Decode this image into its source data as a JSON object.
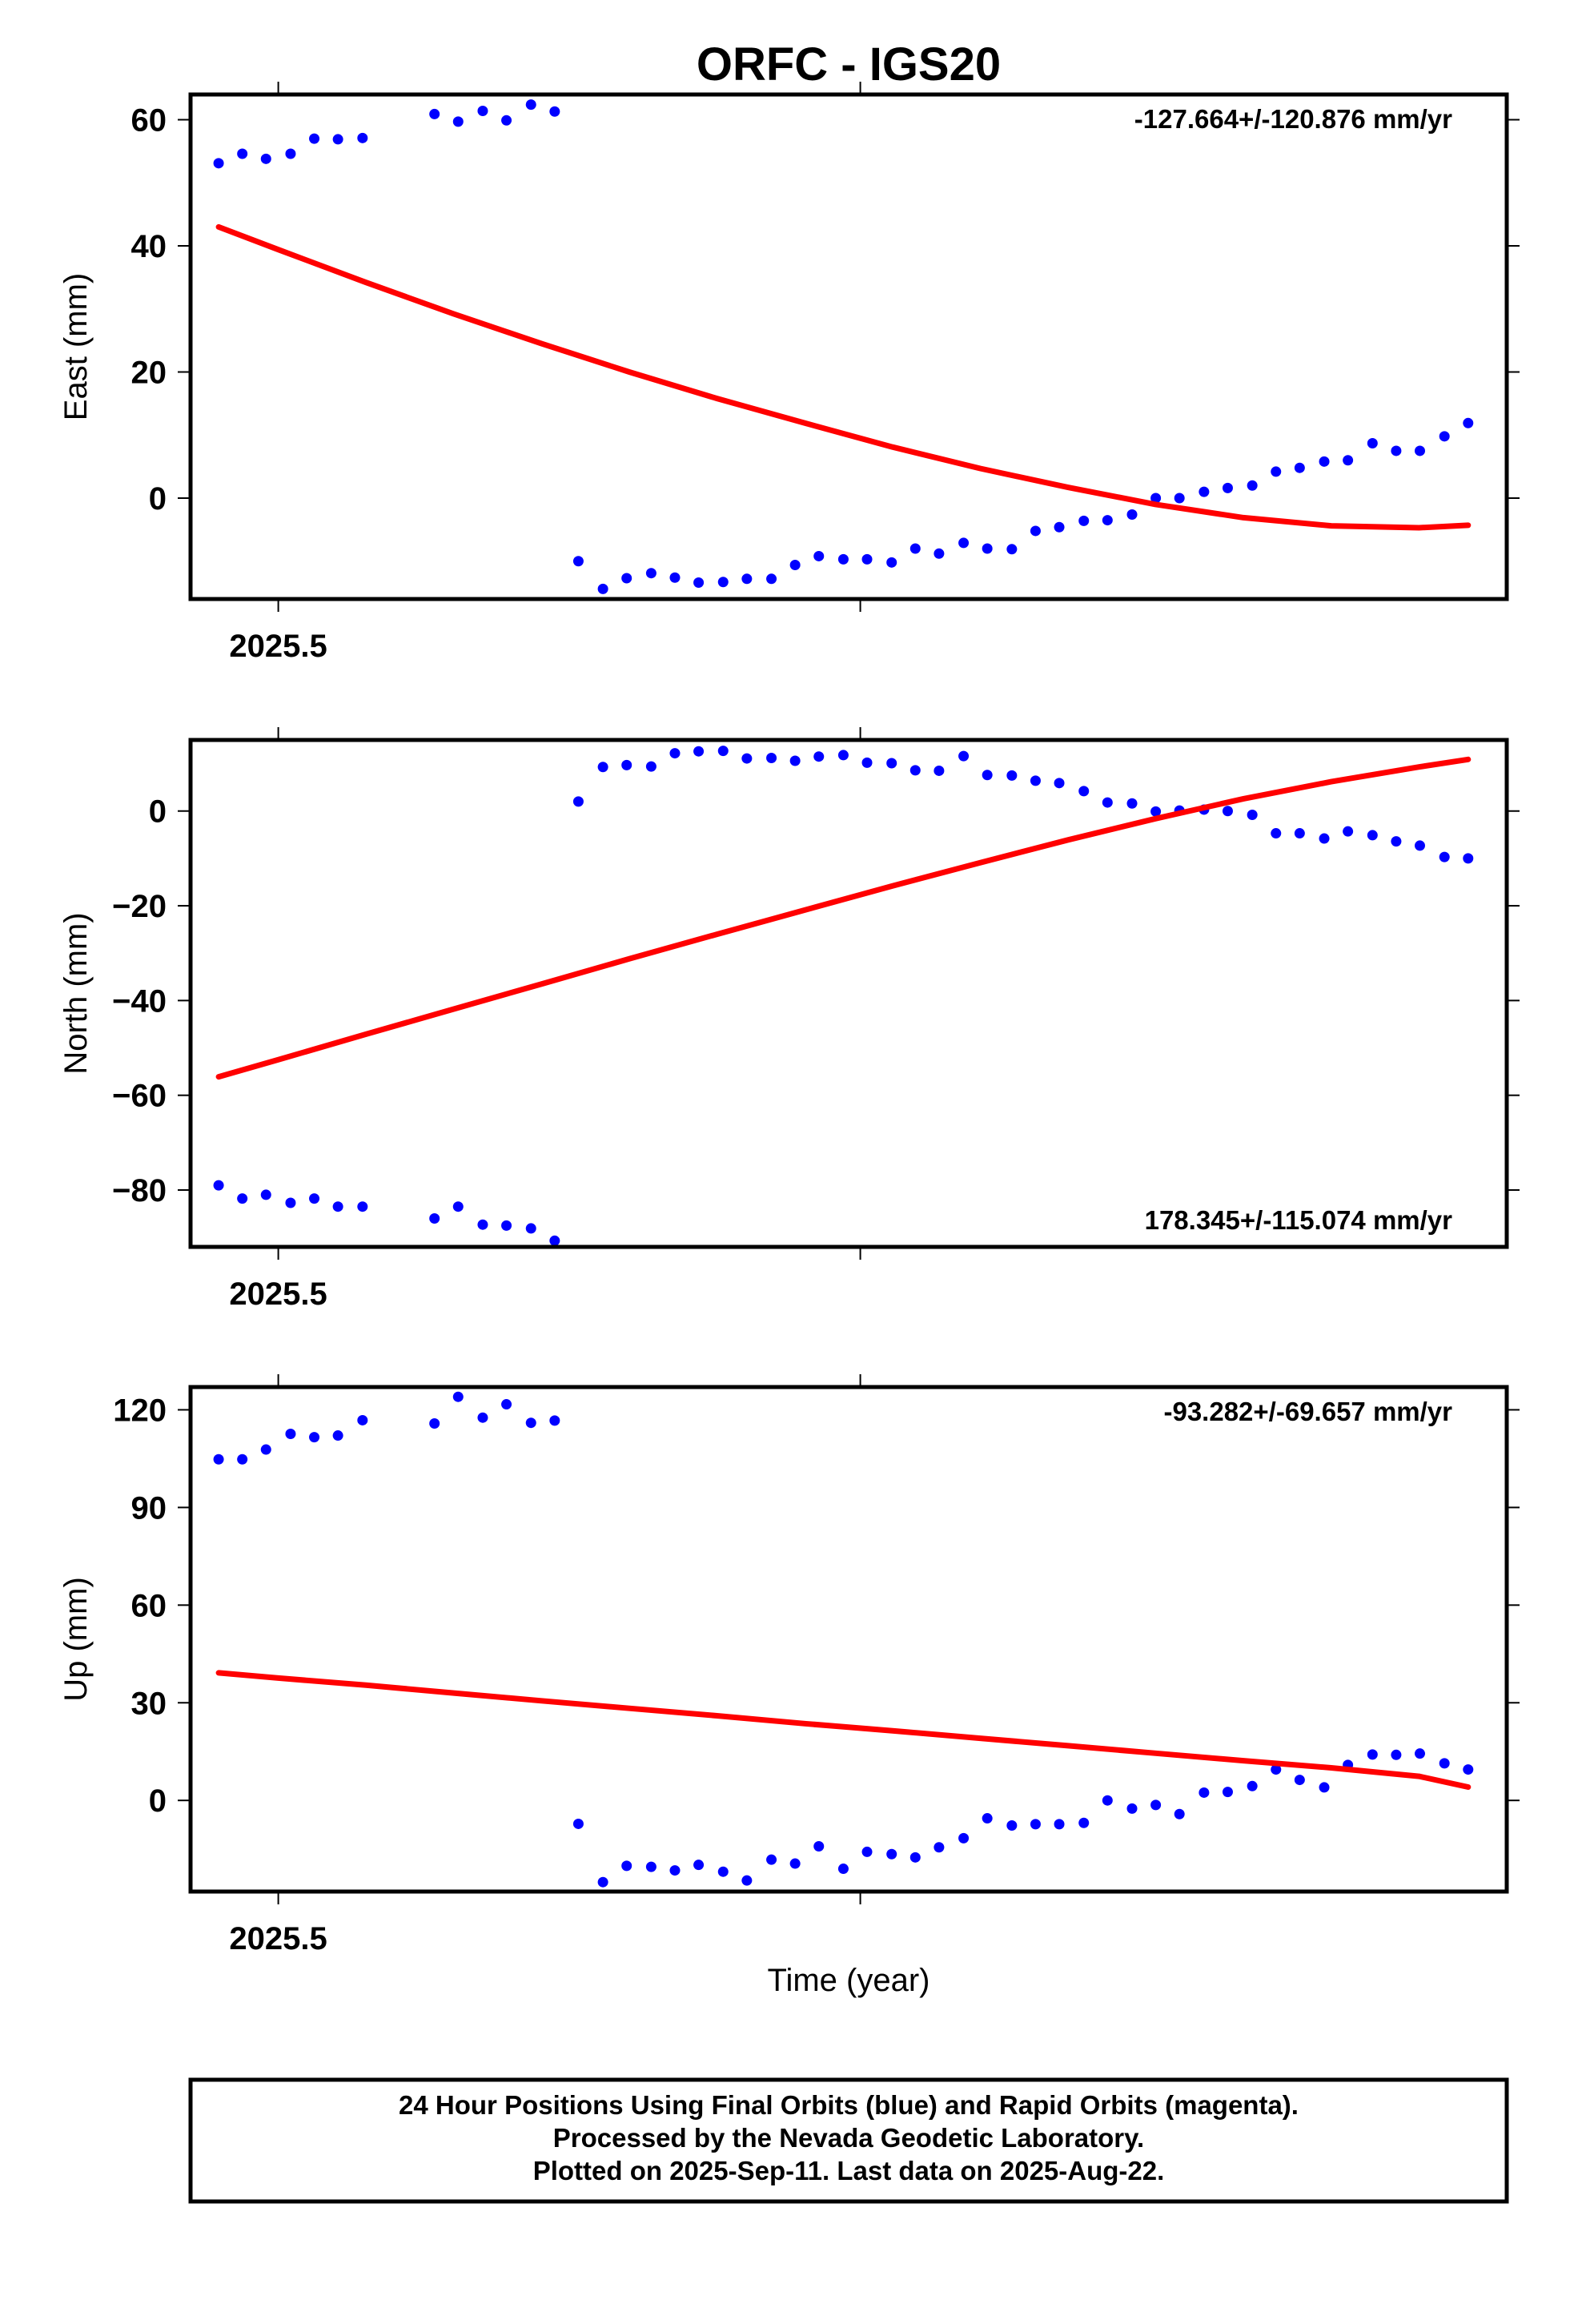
{
  "title": "ORFC - IGS20",
  "xlabel": "Time (year)",
  "x_tick_label": "2025.5",
  "footer": {
    "line1": "24 Hour Positions Using Final Orbits (blue) and Rapid Orbits (magenta).",
    "line2": "Processed by the Nevada Geodetic Laboratory.",
    "line3": "Plotted on 2025-Sep-11. Last data on 2025-Aug-22."
  },
  "colors": {
    "data": "#0000ff",
    "fit": "#ff0000",
    "frame": "#000000"
  },
  "chart_data": [
    {
      "type": "scatter",
      "name": "east",
      "title": "ORFC - IGS20",
      "ylabel": "East (mm)",
      "rate": "-127.664+/-120.876 mm/yr",
      "rate_position": "top-right",
      "xlim": [
        2025.49,
        2025.64
      ],
      "ylim": [
        -16,
        64
      ],
      "yticks": [
        0,
        20,
        40,
        60
      ],
      "ytick_labels": [
        "0",
        "20",
        "40",
        "60"
      ],
      "x": [
        2025.4932,
        2025.4959,
        2025.4986,
        2025.5014,
        2025.5041,
        2025.5068,
        2025.5096,
        2025.5178,
        2025.5205,
        2025.5233,
        2025.526,
        2025.5288,
        2025.5315,
        2025.5342,
        2025.537,
        2025.5397,
        2025.5425,
        2025.5452,
        2025.5479,
        2025.5507,
        2025.5534,
        2025.5562,
        2025.5589,
        2025.5616,
        2025.5644,
        2025.5671,
        2025.5699,
        2025.5726,
        2025.5753,
        2025.5781,
        2025.5808,
        2025.5836,
        2025.5863,
        2025.589,
        2025.5918,
        2025.5945,
        2025.5973,
        2025.6,
        2025.6027,
        2025.6055,
        2025.6082,
        2025.611,
        2025.6137,
        2025.6164,
        2025.6192,
        2025.6219,
        2025.6247,
        2025.6274,
        2025.6301,
        2025.6329,
        2025.6356
      ],
      "y": [
        53.1,
        54.6,
        53.8,
        54.6,
        57.0,
        56.9,
        57.1,
        60.9,
        59.7,
        61.4,
        59.9,
        62.4,
        61.3,
        -10.0,
        -14.4,
        -12.7,
        -11.9,
        -12.6,
        -13.4,
        -13.3,
        -12.8,
        -12.8,
        -10.6,
        -9.2,
        -9.7,
        -9.7,
        -10.2,
        -8.0,
        -8.8,
        -7.1,
        -8.0,
        -8.1,
        -5.2,
        -4.6,
        -3.6,
        -3.5,
        -2.6,
        0.0,
        0.0,
        1.0,
        1.6,
        2.0,
        4.2,
        4.8,
        5.8,
        6.0,
        8.7,
        7.5,
        7.5,
        9.8,
        11.9
      ],
      "fit_x": [
        2025.4932,
        2025.5,
        2025.51,
        2025.52,
        2025.53,
        2025.54,
        2025.55,
        2025.56,
        2025.57,
        2025.58,
        2025.59,
        2025.6,
        2025.61,
        2025.62,
        2025.63,
        2025.6356
      ],
      "fit_y": [
        43.0,
        39.4,
        34.2,
        29.2,
        24.5,
        20.0,
        15.8,
        11.9,
        8.1,
        4.7,
        1.7,
        -1.0,
        -3.1,
        -4.4,
        -4.7,
        -4.3
      ]
    },
    {
      "type": "scatter",
      "name": "north",
      "ylabel": "North (mm)",
      "rate": "178.345+/-115.074 mm/yr",
      "rate_position": "bottom-right",
      "xlim": [
        2025.49,
        2025.64
      ],
      "ylim": [
        -92,
        15
      ],
      "yticks": [
        -80,
        -60,
        -40,
        -20,
        0
      ],
      "ytick_labels": [
        "−80",
        "−60",
        "−40",
        "−20",
        "0"
      ],
      "x": [
        2025.4932,
        2025.4959,
        2025.4986,
        2025.5014,
        2025.5041,
        2025.5068,
        2025.5096,
        2025.5178,
        2025.5205,
        2025.5233,
        2025.526,
        2025.5288,
        2025.5315,
        2025.5342,
        2025.537,
        2025.5397,
        2025.5425,
        2025.5452,
        2025.5479,
        2025.5507,
        2025.5534,
        2025.5562,
        2025.5589,
        2025.5616,
        2025.5644,
        2025.5671,
        2025.5699,
        2025.5726,
        2025.5753,
        2025.5781,
        2025.5808,
        2025.5836,
        2025.5863,
        2025.589,
        2025.5918,
        2025.5945,
        2025.5973,
        2025.6,
        2025.6027,
        2025.6055,
        2025.6082,
        2025.611,
        2025.6137,
        2025.6164,
        2025.6192,
        2025.6219,
        2025.6247,
        2025.6274,
        2025.6301,
        2025.6329,
        2025.6356
      ],
      "y": [
        -79.0,
        -81.8,
        -81.0,
        -82.7,
        -81.8,
        -83.5,
        -83.5,
        -86.0,
        -83.5,
        -87.3,
        -87.5,
        -88.1,
        -90.7,
        2.0,
        9.3,
        9.7,
        9.4,
        12.2,
        12.6,
        12.7,
        11.1,
        11.2,
        10.6,
        11.5,
        11.8,
        10.2,
        10.1,
        8.6,
        8.5,
        11.6,
        7.6,
        7.5,
        6.4,
        5.9,
        4.2,
        1.8,
        1.6,
        -0.1,
        0.1,
        0.3,
        0.0,
        -0.8,
        -4.7,
        -4.7,
        -5.8,
        -4.3,
        -5.1,
        -6.4,
        -7.3,
        -9.7,
        -10.0
      ],
      "fit_x": [
        2025.4932,
        2025.5,
        2025.51,
        2025.52,
        2025.53,
        2025.54,
        2025.55,
        2025.56,
        2025.57,
        2025.58,
        2025.59,
        2025.6,
        2025.61,
        2025.62,
        2025.63,
        2025.6356
      ],
      "fit_y": [
        -56.1,
        -52.5,
        -47.1,
        -41.8,
        -36.5,
        -31.2,
        -26.0,
        -20.9,
        -15.8,
        -10.9,
        -6.1,
        -1.6,
        2.6,
        6.2,
        9.3,
        10.9
      ]
    },
    {
      "type": "scatter",
      "name": "up",
      "ylabel": "Up (mm)",
      "rate": "-93.282+/-69.657 mm/yr",
      "rate_position": "top-right",
      "xlim": [
        2025.49,
        2025.64
      ],
      "ylim": [
        -28,
        127
      ],
      "yticks": [
        0,
        30,
        60,
        90,
        120
      ],
      "ytick_labels": [
        "0",
        "30",
        "60",
        "90",
        "120"
      ],
      "x": [
        2025.4932,
        2025.4959,
        2025.4986,
        2025.5014,
        2025.5041,
        2025.5068,
        2025.5096,
        2025.5178,
        2025.5205,
        2025.5233,
        2025.526,
        2025.5288,
        2025.5315,
        2025.5342,
        2025.537,
        2025.5397,
        2025.5425,
        2025.5452,
        2025.5479,
        2025.5507,
        2025.5534,
        2025.5562,
        2025.5589,
        2025.5616,
        2025.5644,
        2025.5671,
        2025.5699,
        2025.5726,
        2025.5753,
        2025.5781,
        2025.5808,
        2025.5836,
        2025.5863,
        2025.589,
        2025.5918,
        2025.5945,
        2025.5973,
        2025.6,
        2025.6027,
        2025.6055,
        2025.6082,
        2025.611,
        2025.6137,
        2025.6164,
        2025.6192,
        2025.6219,
        2025.6247,
        2025.6274,
        2025.6301,
        2025.6329,
        2025.6356
      ],
      "y": [
        104.8,
        104.8,
        107.8,
        112.6,
        111.6,
        112.1,
        116.8,
        115.8,
        124.0,
        117.6,
        121.7,
        116.0,
        116.7,
        -7.2,
        -25.1,
        -20.1,
        -20.4,
        -21.5,
        -19.8,
        -21.9,
        -24.6,
        -18.2,
        -19.4,
        -14.1,
        -21.0,
        -15.8,
        -16.5,
        -17.5,
        -14.4,
        -11.6,
        -5.5,
        -7.7,
        -7.3,
        -7.3,
        -6.9,
        0.0,
        -2.5,
        -1.4,
        -4.2,
        2.4,
        2.6,
        4.4,
        9.5,
        6.3,
        4.0,
        10.9,
        14.1,
        14.0,
        14.4,
        11.4,
        9.5
      ],
      "fit_x": [
        2025.4932,
        2025.5,
        2025.51,
        2025.52,
        2025.53,
        2025.54,
        2025.55,
        2025.56,
        2025.57,
        2025.58,
        2025.59,
        2025.6,
        2025.61,
        2025.62,
        2025.63,
        2025.6356
      ],
      "fit_y": [
        39.2,
        37.6,
        35.4,
        33.0,
        30.6,
        28.3,
        26.0,
        23.6,
        21.4,
        19.1,
        16.8,
        14.5,
        12.2,
        10.0,
        7.4,
        4.1
      ]
    }
  ]
}
